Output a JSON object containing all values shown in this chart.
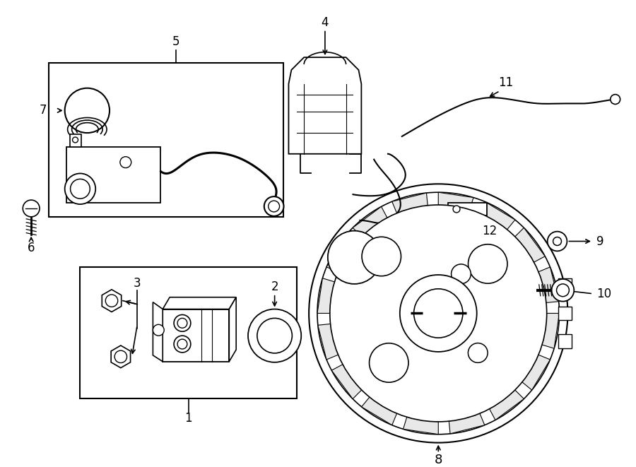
{
  "background_color": "#ffffff",
  "line_color": "#000000",
  "figure_width": 9.0,
  "figure_height": 6.61,
  "dpi": 100,
  "font_size": 12
}
